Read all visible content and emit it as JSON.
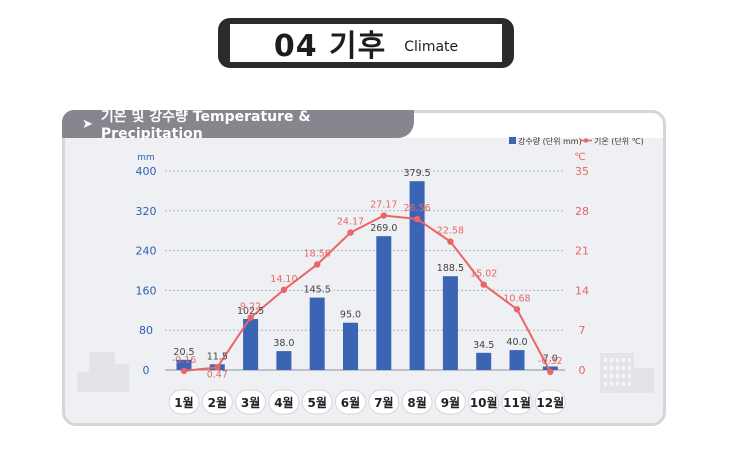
{
  "header": {
    "number_title": "04 기후",
    "subtitle": "Climate"
  },
  "panel": {
    "tab_title": "기온 및 강수량 Temperature & Precipitation"
  },
  "colors": {
    "bar": "#3b65b4",
    "line": "#ea6666",
    "left_axis": "#2f5fb0",
    "right_axis": "#e96464",
    "grid": "#aeb4bf"
  },
  "chart_data": {
    "type": "bar+line",
    "categories": [
      "1월",
      "2월",
      "3월",
      "4월",
      "5월",
      "6월",
      "7월",
      "8월",
      "9월",
      "10월",
      "11월",
      "12월"
    ],
    "series": [
      {
        "name": "강수량 (단위 mm)",
        "type": "bar",
        "axis": "left",
        "values": [
          20.5,
          11.5,
          102.5,
          38.0,
          145.5,
          95.0,
          269.0,
          379.5,
          188.5,
          34.5,
          40.0,
          7.0
        ],
        "labels": [
          "20.5",
          "11.5",
          "102.5",
          "38.0",
          "145.5",
          "95.0",
          "269.0",
          "379.5",
          "188.5",
          "34.5",
          "40.0",
          "7.0"
        ]
      },
      {
        "name": "기온 (단위 ℃)",
        "type": "line",
        "axis": "right",
        "values": [
          -0.16,
          0.47,
          9.22,
          14.1,
          18.56,
          24.17,
          27.17,
          26.56,
          22.58,
          15.02,
          10.68,
          -0.32
        ],
        "labels": [
          "-0.16",
          "0.47",
          "9.22",
          "14.10",
          "18.56",
          "24.17",
          "27.17",
          "26.56",
          "22.58",
          "15.02",
          "10.68",
          "-0.32"
        ]
      }
    ],
    "left_axis": {
      "unit": "mm",
      "ticks": [
        "0",
        "80",
        "160",
        "240",
        "320",
        "400"
      ],
      "range": [
        0,
        400
      ]
    },
    "right_axis": {
      "unit": "℃",
      "ticks": [
        "0",
        "7",
        "14",
        "21",
        "28",
        "35"
      ],
      "range": [
        0,
        35
      ]
    },
    "legend": {
      "placement": "top-right",
      "items": [
        "강수량 (단위 mm)",
        "기온 (단위 ℃)"
      ]
    },
    "grid": true
  }
}
